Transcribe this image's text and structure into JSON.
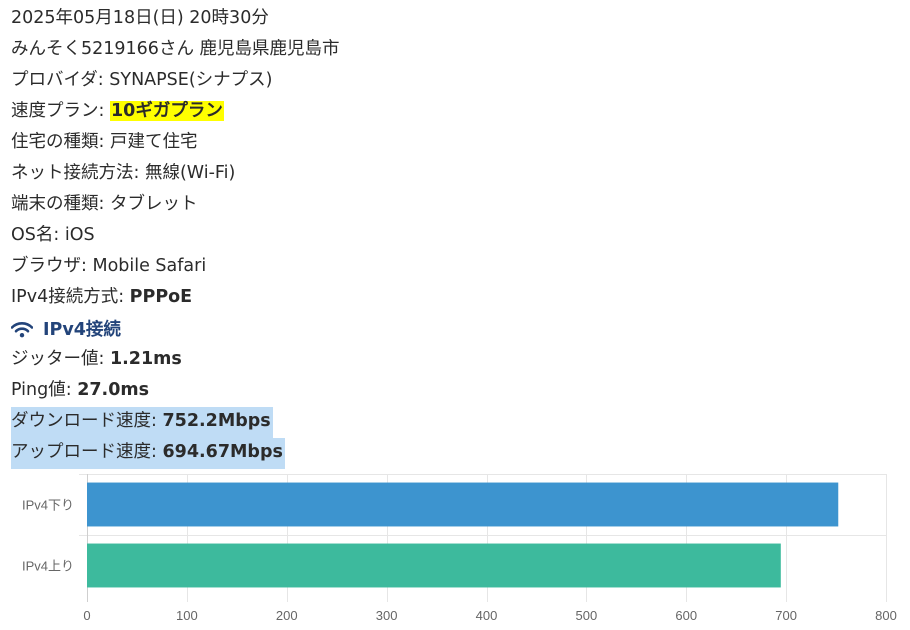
{
  "header": {
    "datetime": "2025年05月18日(日) 20時30分",
    "user_line": "みんそく5219166さん 鹿児島県鹿児島市"
  },
  "info": {
    "provider": {
      "label": "プロバイダ: ",
      "value": "SYNAPSE(シナプス)"
    },
    "plan": {
      "label": "速度プラン: ",
      "value": "10ギガプラン"
    },
    "housing": {
      "label": "住宅の種類: ",
      "value": "戸建て住宅"
    },
    "connection": {
      "label": "ネット接続方法: ",
      "value": "無線(Wi-Fi)"
    },
    "device": {
      "label": "端末の種類: ",
      "value": "タブレット"
    },
    "os": {
      "label": "OS名: ",
      "value": "iOS"
    },
    "browser": {
      "label": "ブラウザ: ",
      "value": "Mobile Safari"
    },
    "ipv4_method": {
      "label": "IPv4接続方式: ",
      "value": "PPPoE"
    }
  },
  "section": {
    "title": "IPv4接続",
    "icon": "wifi-icon"
  },
  "results": {
    "jitter": {
      "label": "ジッター値: ",
      "value": "1.21ms"
    },
    "ping": {
      "label": "Ping値: ",
      "value": "27.0ms"
    },
    "download": {
      "label": "ダウンロード速度: ",
      "value": "752.2Mbps"
    },
    "upload": {
      "label": "アップロード速度: ",
      "value": "694.67Mbps"
    }
  },
  "colors": {
    "download_bar": "#3d94cf",
    "upload_bar": "#3dba9d",
    "highlight_yellow": "#ffff00",
    "highlight_blue": "#bfdcf5",
    "section_title": "#23447a"
  },
  "chart_data": {
    "type": "bar",
    "orientation": "horizontal",
    "categories": [
      "IPv4下り",
      "IPv4上り"
    ],
    "values": [
      752.2,
      694.67
    ],
    "xlim": [
      0,
      800
    ],
    "xticks": [
      0,
      100,
      200,
      300,
      400,
      500,
      600,
      700,
      800
    ],
    "grid": true,
    "legend": "none"
  }
}
